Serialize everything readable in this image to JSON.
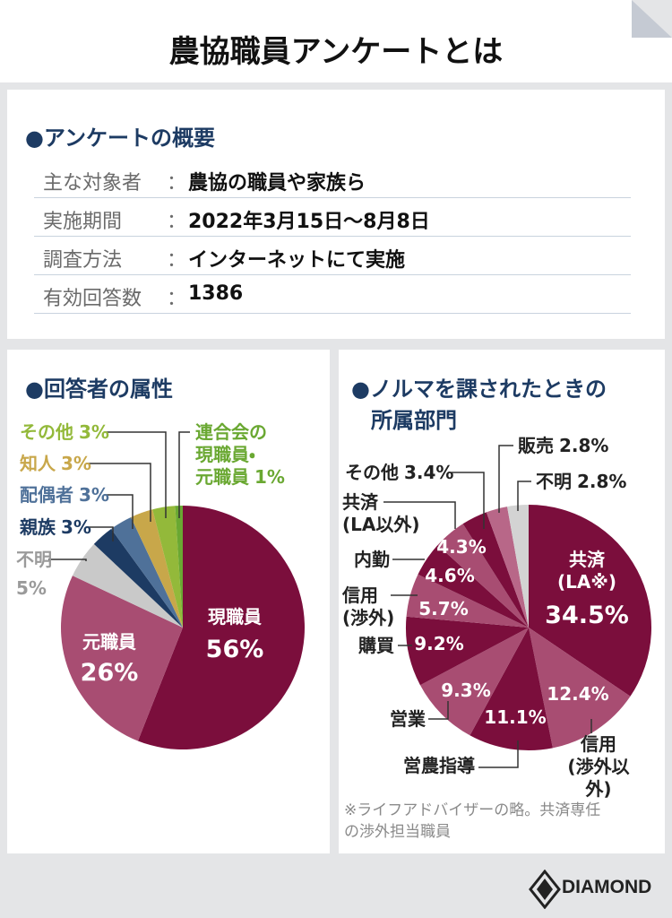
{
  "header": {
    "title": "農協職員アンケートとは"
  },
  "overview": {
    "heading": "●アンケートの概要",
    "rows": [
      {
        "label": "主な対象者",
        "colon": "：",
        "value": "農協の職員や家族ら"
      },
      {
        "label": "実施期間",
        "colon": "：",
        "value": "2022年3月15日～8月8日"
      },
      {
        "label": "調査方法",
        "colon": "：",
        "value": "インターネットにて実施"
      },
      {
        "label": "有効回答数",
        "colon": "：",
        "value": "1386"
      }
    ]
  },
  "chart_data": [
    {
      "type": "pie",
      "title": "●回答者の属性",
      "categories": [
        "現職員",
        "元職員",
        "不明",
        "親族",
        "配偶者",
        "知人",
        "その他",
        "連合会の\n現職員・\n元職員"
      ],
      "values": [
        56,
        26,
        5,
        3,
        3,
        3,
        3,
        1
      ],
      "value_labels": [
        "56%",
        "26%",
        "5%",
        "3%",
        "3%",
        "3%",
        "3%",
        "1%"
      ],
      "colors": [
        "#7b0e3c",
        "#a84d72",
        "#c9c9c9",
        "#1d3b63",
        "#4f7199",
        "#c8a74a",
        "#93b93a",
        "#6aa832"
      ]
    },
    {
      "type": "pie",
      "title": "●ノルマを課されたときの\n所属部門",
      "categories": [
        "共済\n(LA※)",
        "信用\n(渉外以外)",
        "営農指導",
        "営業",
        "購買",
        "信用\n(渉外)",
        "内勤",
        "共済\n(LA以外)",
        "その他",
        "販売",
        "不明"
      ],
      "values": [
        34.5,
        12.4,
        11.1,
        9.3,
        9.2,
        5.7,
        4.6,
        4.3,
        3.4,
        2.8,
        2.8
      ],
      "value_labels": [
        "34.5%",
        "12.4%",
        "11.1%",
        "9.3%",
        "9.2%",
        "5.7%",
        "4.6%",
        "4.3%",
        "3.4%",
        "2.8%",
        "2.8%"
      ],
      "colors": [
        "#7b0e3c",
        "#a84d72",
        "#7b0e3c",
        "#a84d72",
        "#7b0e3c",
        "#a84d72",
        "#7b0e3c",
        "#a84d72",
        "#7b0e3c",
        "#b86788",
        "#d3d3d3"
      ],
      "footnote": "※ライフアドバイザーの略。共済専任\nの渉外担当職員"
    }
  ],
  "footer": {
    "brand": "DIAMOND"
  }
}
